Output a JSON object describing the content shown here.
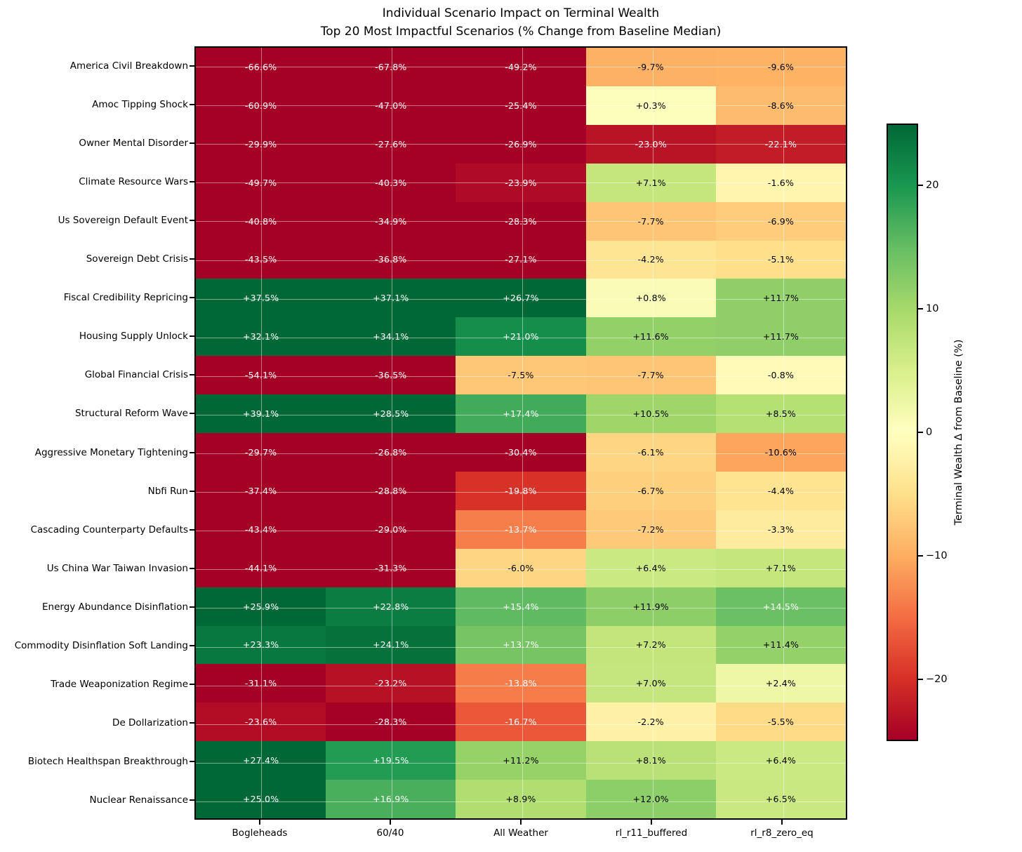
{
  "chart_data": {
    "type": "heatmap",
    "title": "Individual Scenario Impact on Terminal Wealth\nTop 20 Most Impactful Scenarios (% Change from Baseline Median)",
    "columns": [
      "Bogleheads",
      "60/40",
      "All Weather",
      "rl_r11_buffered",
      "rl_r8_zero_eq"
    ],
    "rows": [
      "America Civil Breakdown",
      "Amoc Tipping Shock",
      "Owner Mental Disorder",
      "Climate Resource Wars",
      "Us Sovereign Default Event",
      "Sovereign Debt Crisis",
      "Fiscal Credibility Repricing",
      "Housing Supply Unlock",
      "Global Financial Crisis",
      "Structural Reform Wave",
      "Aggressive Monetary Tightening",
      "Nbfi Run",
      "Cascading Counterparty Defaults",
      "Us China War Taiwan Invasion",
      "Energy Abundance Disinflation",
      "Commodity Disinflation Soft Landing",
      "Trade Weaponization Regime",
      "De Dollarization",
      "Biotech Healthspan Breakthrough",
      "Nuclear Renaissance"
    ],
    "values": [
      [
        -66.6,
        -67.8,
        -49.2,
        -9.7,
        -9.6
      ],
      [
        -60.9,
        -47.0,
        -25.4,
        0.3,
        -8.6
      ],
      [
        -29.9,
        -27.6,
        -26.9,
        -23.0,
        -22.1
      ],
      [
        -49.7,
        -40.3,
        -23.9,
        7.1,
        -1.6
      ],
      [
        -40.8,
        -34.9,
        -28.3,
        -7.7,
        -6.9
      ],
      [
        -43.5,
        -36.8,
        -27.1,
        -4.2,
        -5.1
      ],
      [
        37.5,
        37.1,
        26.7,
        0.8,
        11.7
      ],
      [
        32.1,
        34.1,
        21.0,
        11.6,
        11.7
      ],
      [
        -54.1,
        -36.5,
        -7.5,
        -7.7,
        -0.8
      ],
      [
        39.1,
        28.5,
        17.4,
        10.5,
        8.5
      ],
      [
        -29.7,
        -26.8,
        -30.4,
        -6.1,
        -10.6
      ],
      [
        -37.4,
        -28.8,
        -19.8,
        -6.7,
        -4.4
      ],
      [
        -43.4,
        -29.0,
        -13.7,
        -7.2,
        -3.3
      ],
      [
        -44.1,
        -31.3,
        -6.0,
        6.4,
        7.1
      ],
      [
        25.9,
        22.8,
        15.4,
        11.9,
        14.5
      ],
      [
        23.3,
        24.1,
        13.7,
        7.2,
        11.4
      ],
      [
        -31.1,
        -23.2,
        -13.8,
        7.0,
        2.4
      ],
      [
        -23.6,
        -28.3,
        -16.7,
        -2.2,
        -5.5
      ],
      [
        27.4,
        19.5,
        11.2,
        8.1,
        6.4
      ],
      [
        25.0,
        16.9,
        8.9,
        12.0,
        6.5
      ]
    ],
    "value_format": "signed percent, 1 decimal",
    "grid": true,
    "colormap": {
      "name": "RdYlGn",
      "anchors": [
        "#a50026",
        "#d73027",
        "#f46d43",
        "#fdae61",
        "#fee08b",
        "#ffffbf",
        "#d9ef8b",
        "#a6d96a",
        "#66bd63",
        "#1a9850",
        "#006837"
      ]
    },
    "colorbar": {
      "label": "Terminal Wealth Δ from Baseline (%)",
      "vmin": -25,
      "vmax": 25,
      "ticks": [
        {
          "value": 20,
          "label": "20"
        },
        {
          "value": 10,
          "label": "10"
        },
        {
          "value": 0,
          "label": "0"
        },
        {
          "value": -10,
          "label": "−10"
        },
        {
          "value": -20,
          "label": "−20"
        }
      ]
    }
  }
}
